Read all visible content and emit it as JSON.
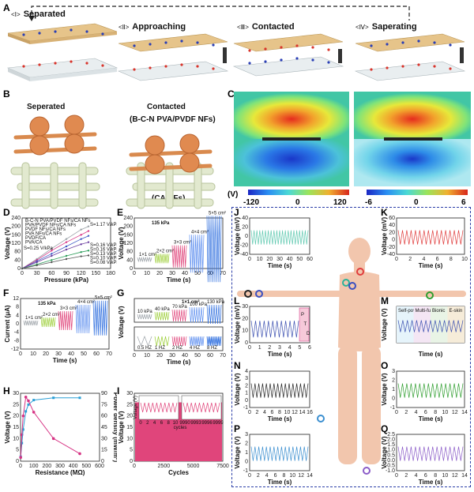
{
  "panels": {
    "A": "A",
    "B": "B",
    "C": "C",
    "D": "D",
    "E": "E",
    "F": "F",
    "G": "G",
    "H": "H",
    "I": "I",
    "J": "J",
    "K": "K",
    "L": "L",
    "M": "M",
    "N": "N",
    "O": "O",
    "P": "P",
    "Q": "Q"
  },
  "stages": [
    {
      "num": "<Ⅰ>",
      "label": "Separated"
    },
    {
      "num": "<Ⅱ>",
      "label": "Approaching"
    },
    {
      "num": "<Ⅲ>",
      "label": "Contacted"
    },
    {
      "num": "<Ⅳ>",
      "label": "Saperating"
    }
  ],
  "schematic": {
    "separated": "Seperated",
    "contacted": "Contacted",
    "top_material": "(B-C-N PVA/PVDF NFs)",
    "bottom_material": "(CA NFs)"
  },
  "colorbar": {
    "unit": "(V)",
    "ticks_left": [
      "-120",
      "0",
      "120"
    ],
    "ticks_right": [
      "-6",
      "0",
      "6"
    ]
  },
  "chart_data": [
    {
      "panel": "D",
      "type": "line",
      "xlabel": "Pressure (kPa)",
      "ylabel": "Voltage (V)",
      "xticks": [
        "0",
        "30",
        "60",
        "90",
        "120",
        "150",
        "180"
      ],
      "yticks": [
        "0",
        "40",
        "80",
        "120",
        "160",
        "200",
        "240"
      ],
      "xlim": [
        0,
        180
      ],
      "ylim": [
        0,
        240
      ],
      "series": [
        {
          "name": "B-C-N PVA/PVDF NFs/CA NFs",
          "color": "#9aa0a6",
          "x": [
            0,
            30,
            60,
            90,
            120,
            135
          ],
          "y": [
            0,
            45,
            95,
            140,
            185,
            200
          ]
        },
        {
          "name": "PVA/PVDF NFs/CA NFs",
          "color": "#d63384",
          "x": [
            0,
            30,
            60,
            90,
            120,
            135
          ],
          "y": [
            0,
            40,
            85,
            125,
            160,
            178
          ]
        },
        {
          "name": "PVDF NFs/CA NFs",
          "color": "#3b57c4",
          "x": [
            0,
            30,
            60,
            90,
            120,
            135
          ],
          "y": [
            0,
            35,
            70,
            105,
            140,
            155
          ]
        },
        {
          "name": "PVA NFs/CA NFs",
          "color": "#6b3fa0",
          "x": [
            0,
            30,
            60,
            90,
            120,
            135
          ],
          "y": [
            0,
            30,
            60,
            90,
            115,
            125
          ]
        },
        {
          "name": "PVDF/CA",
          "color": "#2e9e5b",
          "x": [
            0,
            30,
            60,
            90,
            120,
            135
          ],
          "y": [
            0,
            20,
            40,
            60,
            78,
            85
          ]
        },
        {
          "name": "PVA/CA",
          "color": "#555555",
          "x": [
            0,
            30,
            60,
            90,
            120,
            135
          ],
          "y": [
            0,
            15,
            30,
            45,
            58,
            62
          ]
        }
      ],
      "annotations": [
        "S=1.17 V/kPa",
        "S=0.25 V/kPa",
        "S=0.16 V/kPa",
        "S=0.16 V/kPa",
        "S=0.13 V/kPa",
        "S=0.10 V/kPa",
        "S=0.08 V/kPa"
      ]
    },
    {
      "panel": "E",
      "type": "line",
      "xlabel": "Time (s)",
      "ylabel": "Voltage (V)",
      "title": "135 kPa",
      "xticks": [
        "0",
        "10",
        "20",
        "30",
        "40",
        "50",
        "60",
        "70"
      ],
      "yticks": [
        "0",
        "40",
        "80",
        "120",
        "160",
        "200",
        "240"
      ],
      "labels": [
        "1×1 cm²",
        "2×2 cm²",
        "3×3 cm²",
        "4×4 cm²",
        "5×5 cm²"
      ],
      "amplitudes": [
        12,
        30,
        70,
        120,
        210
      ],
      "colors": [
        "#9aa0a6",
        "#9acd32",
        "#e0457b",
        "#5b8def",
        "#2f6fdf"
      ]
    },
    {
      "panel": "F",
      "type": "line",
      "xlabel": "Time (s)",
      "ylabel": "Current (μA)",
      "title": "135 kPa",
      "xticks": [
        "0",
        "10",
        "20",
        "30",
        "40",
        "50",
        "60",
        "70"
      ],
      "yticks": [
        "-12",
        "-8",
        "-4",
        "0",
        "4",
        "8",
        "12"
      ],
      "labels": [
        "1×1 cm²",
        "2×2 cm²",
        "3×3 cm²",
        "4×4 cm²",
        "5×5 cm²"
      ],
      "amplitudes": [
        1.5,
        3,
        6,
        9,
        11
      ],
      "colors": [
        "#9aa0a6",
        "#9acd32",
        "#e0457b",
        "#5b8def",
        "#2f6fdf"
      ]
    },
    {
      "panel": "G",
      "type": "line",
      "xlabel": "Time (s)",
      "ylabel": "Voltage (V)",
      "top_labels": [
        "10 kPa",
        "40 kPa",
        "70 kPa",
        "100 kPa",
        "130 kPa"
      ],
      "top_title": "1×1 cm²",
      "bottom_labels": [
        "0.5 HZ",
        "1 HZ",
        "2 HZ",
        "4 HZ",
        "8 HZ"
      ],
      "xticks": [
        "0",
        "10",
        "20",
        "30",
        "40",
        "50",
        "60",
        "70"
      ],
      "colors": [
        "#9aa0a6",
        "#9acd32",
        "#e0457b",
        "#5b8def",
        "#2f6fdf"
      ]
    },
    {
      "panel": "H",
      "type": "line",
      "xlabel": "Resistance (MΩ)",
      "ylabel": "Voltage (V)",
      "ylabel_right": "Power density (mW/m²)",
      "xticks": [
        "0",
        "100",
        "200",
        "300",
        "400",
        "500",
        "600"
      ],
      "yticks": [
        "0",
        "5",
        "10",
        "15",
        "20",
        "25",
        "30"
      ],
      "yticks_right": [
        "0",
        "15",
        "30",
        "45",
        "60",
        "75",
        "90"
      ],
      "voltage": {
        "x": [
          1,
          10,
          20,
          40,
          60,
          100,
          250,
          450
        ],
        "y": [
          2,
          8,
          14,
          22,
          25,
          27,
          28,
          28
        ]
      },
      "power": {
        "x": [
          1,
          10,
          20,
          40,
          60,
          100,
          250,
          450
        ],
        "y": [
          5,
          35,
          60,
          85,
          80,
          65,
          30,
          10
        ]
      }
    },
    {
      "panel": "I",
      "type": "line",
      "xlabel": "Cycles",
      "ylabel": "Voltage (V)",
      "xticks": [
        "0",
        "2500",
        "5000",
        "7500"
      ],
      "yticks": [
        "0",
        "5",
        "10",
        "15",
        "20",
        "25",
        "30"
      ],
      "inset_left_ticks": [
        "0",
        "2",
        "4",
        "6",
        "8",
        "10"
      ],
      "inset_right_ticks": [
        "9990",
        "9993",
        "9996",
        "9999"
      ],
      "inset_xlabel": "cycles",
      "inset_ylabel": "Voltage (V)",
      "level": 26
    },
    {
      "panel": "J",
      "type": "line",
      "xlabel": "Time (s)",
      "ylabel": "Voltage (mV)",
      "xticks": [
        "0",
        "10",
        "20",
        "30",
        "40",
        "50",
        "60"
      ],
      "yticks": [
        "-40",
        "-20",
        "0",
        "20",
        "40"
      ],
      "color": "#5fc9b0"
    },
    {
      "panel": "K",
      "type": "line",
      "xlabel": "Time (s)",
      "ylabel": "Voltage (mV)",
      "xticks": [
        "0",
        "2",
        "4",
        "6",
        "8",
        "10"
      ],
      "yticks": [
        "-40",
        "-20",
        "0",
        "20",
        "40",
        "60"
      ],
      "color": "#e03c3c"
    },
    {
      "panel": "L",
      "type": "line",
      "xlabel": "Time (s)",
      "ylabel": "Voltage (mV)",
      "xticks": [
        "0",
        "1",
        "2",
        "3",
        "4",
        "5",
        "6"
      ],
      "yticks": [
        "0",
        "10",
        "20",
        "30"
      ],
      "color": "#3b4fb0",
      "peak_labels": [
        "P",
        "T",
        "D"
      ]
    },
    {
      "panel": "M",
      "type": "line",
      "xlabel": "Time (s)",
      "ylabel": "Voltage (V)",
      "segments": [
        "Self-powered",
        "Multi-functional",
        "Bionic",
        "E-skin"
      ],
      "color": "#3b4fb0"
    },
    {
      "panel": "N",
      "type": "line",
      "xlabel": "Time (s)",
      "ylabel": "Voltage (V)",
      "xticks": [
        "0",
        "2",
        "4",
        "6",
        "8",
        "10",
        "12",
        "14",
        "16"
      ],
      "yticks": [
        "-1",
        "0",
        "1",
        "2",
        "3",
        "4"
      ],
      "color": "#222222"
    },
    {
      "panel": "O",
      "type": "line",
      "xlabel": "Time (s)",
      "ylabel": "Voltage (V)",
      "xticks": [
        "0",
        "2",
        "4",
        "6",
        "8",
        "10",
        "12",
        "14"
      ],
      "yticks": [
        "-1",
        "0",
        "1",
        "2",
        "3"
      ],
      "color": "#2e9e2e"
    },
    {
      "panel": "P",
      "type": "line",
      "xlabel": "Time (s)",
      "ylabel": "Voltage (V)",
      "xticks": [
        "0",
        "2",
        "4",
        "6",
        "8",
        "10",
        "12",
        "14"
      ],
      "yticks": [
        "-1",
        "0",
        "1",
        "2",
        "3"
      ],
      "color": "#3b8fd0"
    },
    {
      "panel": "Q",
      "type": "line",
      "xlabel": "Time (s)",
      "ylabel": "Voltage (V)",
      "xticks": [
        "0",
        "2",
        "4",
        "6",
        "8",
        "10",
        "12",
        "14"
      ],
      "yticks": [
        "-1.0",
        "-0.5",
        "0.0",
        "0.5",
        "1.0",
        "1.5",
        "2.0",
        "2.5"
      ],
      "color": "#8b5cc8"
    }
  ]
}
